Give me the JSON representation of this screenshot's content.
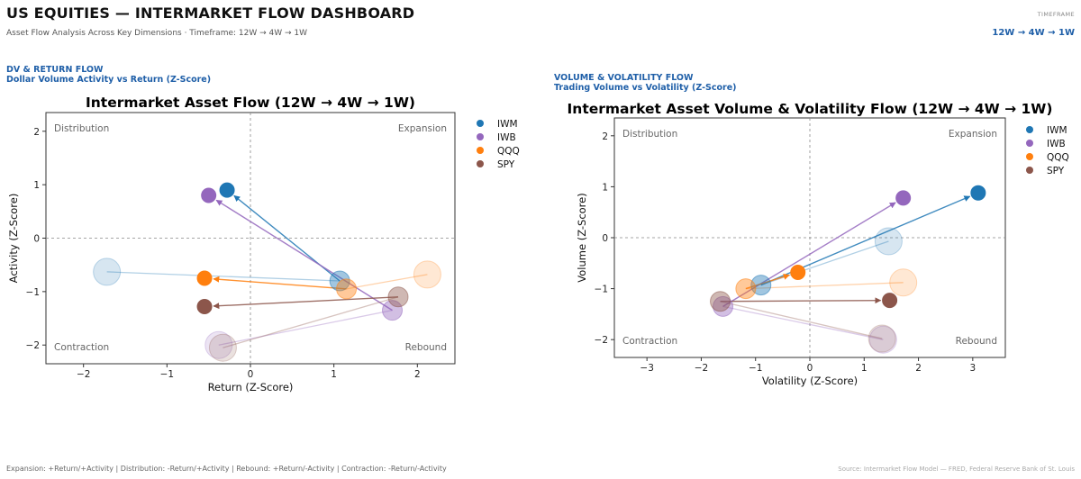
{
  "header": {
    "title": "US EQUITIES — INTERMARKET FLOW DASHBOARD",
    "subtitle": "Asset Flow Analysis Across Key Dimensions  ·  Timeframe: 12W → 4W → 1W",
    "timeframe_label": "TIMEFRAME",
    "timeframe_value": "12W  →  4W  →  1W"
  },
  "sections": {
    "left_title": "DV & RETURN FLOW",
    "left_subtitle": "Dollar Volume Activity vs Return  (Z-Score)",
    "right_title": "VOLUME & VOLATILITY FLOW",
    "right_subtitle": "Trading Volume vs Volatility  (Z-Score)"
  },
  "footer": {
    "legend_text": "Expansion: +Return/+Activity   |   Distribution: -Return/+Activity   |   Rebound: +Return/-Activity   |   Contraction: -Return/-Activity",
    "source": "Source: Intermarket Flow Model  —  FRED, Federal Reserve Bank of St. Louis"
  },
  "colors": {
    "IWM": "#1f77b4",
    "IWB": "#9467bd",
    "QQQ": "#ff7f0e",
    "SPY": "#8c564b"
  },
  "chart_data": [
    {
      "type": "scatter",
      "title": "Intermarket Asset Flow (12W → 4W → 1W)",
      "xlabel": "Return (Z-Score)",
      "ylabel": "Activity (Z-Score)",
      "xlim": [
        -2.45,
        2.45
      ],
      "ylim": [
        -2.35,
        2.35
      ],
      "xticks": [
        -2,
        -1,
        0,
        1,
        2
      ],
      "yticks": [
        -2,
        -1,
        0,
        1,
        2
      ],
      "quadrants": {
        "top_left": "Distribution",
        "top_right": "Expansion",
        "bottom_left": "Contraction",
        "bottom_right": "Rebound"
      },
      "legend": "right",
      "series": [
        {
          "name": "IWM",
          "points": [
            {
              "t": "12W",
              "x": -1.72,
              "y": -0.63
            },
            {
              "t": "4W",
              "x": 1.07,
              "y": -0.8
            },
            {
              "t": "1W",
              "x": -0.28,
              "y": 0.9
            }
          ]
        },
        {
          "name": "IWB",
          "points": [
            {
              "t": "12W",
              "x": -0.38,
              "y": -2.0
            },
            {
              "t": "4W",
              "x": 1.7,
              "y": -1.35
            },
            {
              "t": "1W",
              "x": -0.5,
              "y": 0.8
            }
          ]
        },
        {
          "name": "QQQ",
          "points": [
            {
              "t": "12W",
              "x": 2.12,
              "y": -0.68
            },
            {
              "t": "4W",
              "x": 1.15,
              "y": -0.95
            },
            {
              "t": "1W",
              "x": -0.55,
              "y": -0.75
            }
          ]
        },
        {
          "name": "SPY",
          "points": [
            {
              "t": "12W",
              "x": -0.33,
              "y": -2.05
            },
            {
              "t": "4W",
              "x": 1.77,
              "y": -1.1
            },
            {
              "t": "1W",
              "x": -0.55,
              "y": -1.28
            }
          ]
        }
      ]
    },
    {
      "type": "scatter",
      "title": "Intermarket Asset Volume & Volatility Flow (12W → 4W → 1W)",
      "xlabel": "Volatility (Z-Score)",
      "ylabel": "Volume (Z-Score)",
      "xlim": [
        -3.6,
        3.6
      ],
      "ylim": [
        -2.35,
        2.35
      ],
      "xticks": [
        -3,
        -2,
        -1,
        0,
        1,
        2,
        3
      ],
      "yticks": [
        -2,
        -1,
        0,
        1,
        2
      ],
      "quadrants": {
        "top_left": "Distribution",
        "top_right": "Expansion",
        "bottom_left": "Contraction",
        "bottom_right": "Rebound"
      },
      "legend": "right",
      "series": [
        {
          "name": "IWM",
          "points": [
            {
              "t": "12W",
              "x": 1.45,
              "y": -0.07
            },
            {
              "t": "4W",
              "x": -0.9,
              "y": -0.93
            },
            {
              "t": "1W",
              "x": 3.1,
              "y": 0.88
            }
          ]
        },
        {
          "name": "IWB",
          "points": [
            {
              "t": "12W",
              "x": 1.35,
              "y": -2.0
            },
            {
              "t": "4W",
              "x": -1.6,
              "y": -1.35
            },
            {
              "t": "1W",
              "x": 1.72,
              "y": 0.78
            }
          ]
        },
        {
          "name": "QQQ",
          "points": [
            {
              "t": "12W",
              "x": 1.72,
              "y": -0.88
            },
            {
              "t": "4W",
              "x": -1.18,
              "y": -1.0
            },
            {
              "t": "1W",
              "x": -0.22,
              "y": -0.68
            }
          ]
        },
        {
          "name": "SPY",
          "points": [
            {
              "t": "12W",
              "x": 1.33,
              "y": -1.98
            },
            {
              "t": "4W",
              "x": -1.65,
              "y": -1.25
            },
            {
              "t": "1W",
              "x": 1.47,
              "y": -1.23
            }
          ]
        }
      ]
    }
  ]
}
